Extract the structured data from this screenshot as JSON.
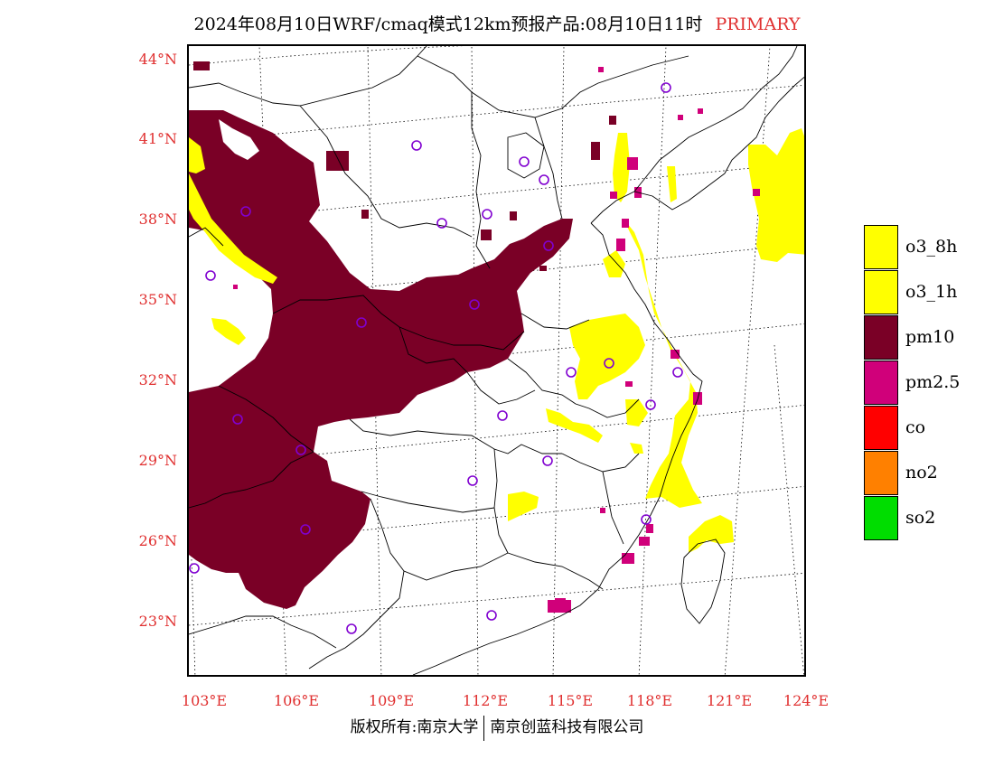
{
  "title": {
    "main": "2024年08月10日WRF/cmaq模式12km预报产品:08月10日11时",
    "tag": "PRIMARY"
  },
  "axes": {
    "lat_labels": [
      "44°N",
      "41°N",
      "38°N",
      "35°N",
      "32°N",
      "29°N",
      "26°N",
      "23°N"
    ],
    "lon_labels": [
      "103°E",
      "106°E",
      "109°E",
      "112°E",
      "115°E",
      "118°E",
      "121°E",
      "124°E"
    ]
  },
  "legend": [
    {
      "label": "o3_8h",
      "color": "#ffff00"
    },
    {
      "label": "o3_1h",
      "color": "#ffff00"
    },
    {
      "label": "pm10",
      "color": "#7a0026"
    },
    {
      "label": "pm2.5",
      "color": "#d0007a"
    },
    {
      "label": "co",
      "color": "#ff0000"
    },
    {
      "label": "no2",
      "color": "#ff8000"
    },
    {
      "label": "so2",
      "color": "#00dd00"
    }
  ],
  "footer": {
    "left": "版权所有:南京大学",
    "right": "南京创蓝科技有限公司"
  }
}
